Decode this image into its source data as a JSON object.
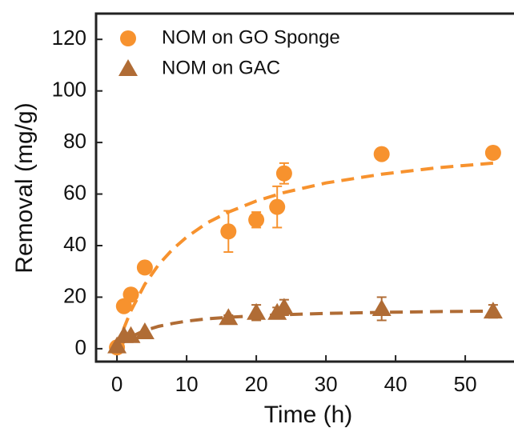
{
  "chart_data": {
    "type": "scatter",
    "x_label": "Time (h)",
    "y_label": "Removal (mg/g)",
    "xlim": [
      -3,
      57
    ],
    "ylim": [
      -5,
      130
    ],
    "xticks": [
      0,
      10,
      20,
      30,
      40,
      50
    ],
    "yticks": [
      0,
      20,
      40,
      60,
      80,
      100,
      120
    ],
    "legend": "upper-left",
    "series": [
      {
        "name": "NOM on GO Sponge",
        "color": "#f7922e",
        "marker": "circle",
        "x": [
          0,
          1,
          2,
          4,
          16,
          20,
          23,
          24,
          38,
          54
        ],
        "values": [
          0.5,
          16.5,
          21,
          31.5,
          45.5,
          50,
          55,
          68,
          75.5,
          76
        ],
        "errors": [
          null,
          null,
          null,
          null,
          8,
          3,
          8,
          4,
          2,
          1.5
        ]
      },
      {
        "name": "NOM on GAC",
        "color": "#b06c35",
        "marker": "triangle",
        "x": [
          0,
          1,
          2,
          4,
          16,
          20,
          23,
          24,
          38,
          54
        ],
        "values": [
          1,
          5,
          5,
          6.5,
          12,
          14,
          14,
          16,
          15.5,
          14.5
        ],
        "errors": [
          null,
          null,
          null,
          null,
          1,
          3,
          2,
          3,
          4.5,
          2.5
        ]
      }
    ],
    "fits": [
      {
        "color": "#f7922e",
        "x": [
          0,
          1,
          2,
          4,
          6,
          8,
          10,
          13,
          16,
          20,
          24,
          30,
          38,
          46,
          54
        ],
        "values": [
          0,
          8.0,
          14.7,
          25.0,
          32.7,
          38.6,
          43.3,
          48.9,
          53.0,
          57.3,
          60.6,
          64.3,
          67.7,
          70.2,
          72.0
        ]
      },
      {
        "color": "#b06c35",
        "x": [
          0,
          1,
          2,
          4,
          6,
          8,
          10,
          13,
          16,
          20,
          24,
          30,
          38,
          46,
          54
        ],
        "values": [
          0,
          2.7,
          4.6,
          7.1,
          8.7,
          9.8,
          10.7,
          11.6,
          12.2,
          12.8,
          13.2,
          13.7,
          14.1,
          14.4,
          14.6
        ]
      }
    ]
  }
}
